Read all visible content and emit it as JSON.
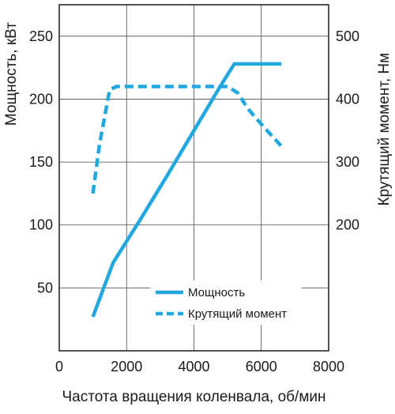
{
  "chart_data": {
    "type": "line",
    "title": "",
    "xlabel": "Частота вращения коленвала, об/мин",
    "ylabel_left": "Мощность, кВт",
    "ylabel_right": "Крутящий момент, Нм",
    "xlim": [
      0,
      8000
    ],
    "ylim_left": [
      0,
      275
    ],
    "ylim_right": [
      0,
      550
    ],
    "x_ticks": [
      "0",
      "2000",
      "4000",
      "6000",
      "8000"
    ],
    "y_ticks_left": [
      "50",
      "100",
      "150",
      "200",
      "250"
    ],
    "y_ticks_right": [
      "200",
      "300",
      "400",
      "500"
    ],
    "grid": true,
    "legend_position": "bottom-right",
    "line_color": "#22a8e0",
    "series": [
      {
        "name": "Мощность",
        "axis": "left",
        "style": "solid",
        "x": [
          1000,
          1600,
          2400,
          3200,
          4000,
          4800,
          5200,
          5400,
          6600
        ],
        "y": [
          27,
          70,
          104,
          139,
          175,
          211,
          228,
          228,
          228
        ]
      },
      {
        "name": "Крутящий момент",
        "axis": "right",
        "style": "dashed",
        "x": [
          1000,
          1200,
          1500,
          1700,
          2500,
          3500,
          4500,
          5000,
          5300,
          5600,
          6000,
          6600
        ],
        "y": [
          250,
          330,
          415,
          420,
          420,
          420,
          420,
          420,
          410,
          385,
          360,
          325
        ]
      }
    ]
  }
}
